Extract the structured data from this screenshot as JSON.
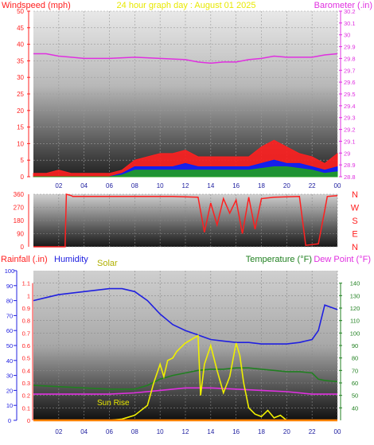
{
  "chart_data": [
    {
      "type": "line",
      "title": "24 hour graph day : August 01 2025",
      "y_left_label": "Windspeed (mph)",
      "y_right_label": "Barometer (.in)",
      "x_ticks": [
        "02",
        "04",
        "06",
        "08",
        "10",
        "12",
        "14",
        "16",
        "18",
        "20",
        "22",
        "00"
      ],
      "x_range": [
        0,
        24
      ],
      "y_left_ticks": [
        0,
        5,
        10,
        15,
        20,
        25,
        30,
        35,
        40,
        45,
        50
      ],
      "y_left_range": [
        0,
        50
      ],
      "y_right_ticks": [
        28.8,
        28.9,
        29,
        29.1,
        29.2,
        29.3,
        29.4,
        29.5,
        29.6,
        29.7,
        29.8,
        29.9,
        30,
        30.1,
        30.2
      ],
      "y_right_range": [
        28.8,
        30.2
      ],
      "series": [
        {
          "key": "barometer",
          "axis": "right",
          "color": "#e030e0",
          "x": [
            0,
            1,
            2,
            3,
            4,
            6,
            8,
            10,
            12,
            13,
            14,
            15,
            16,
            17,
            18,
            19,
            20,
            21,
            22,
            23,
            24
          ],
          "y": [
            29.84,
            29.84,
            29.82,
            29.81,
            29.8,
            29.8,
            29.81,
            29.8,
            29.79,
            29.77,
            29.76,
            29.77,
            29.77,
            29.79,
            29.8,
            29.82,
            29.81,
            29.81,
            29.81,
            29.83,
            29.84
          ]
        },
        {
          "key": "wind_gust",
          "axis": "left",
          "color": "#ff2020",
          "x": [
            0,
            1,
            2,
            3,
            4,
            5,
            6,
            7,
            8,
            9,
            10,
            11,
            12,
            13,
            14,
            15,
            16,
            17,
            18,
            19,
            20,
            21,
            22,
            23,
            24
          ],
          "y": [
            1,
            1,
            2,
            1,
            1,
            1,
            1,
            2,
            5,
            6,
            7,
            7,
            8,
            6,
            6,
            6,
            6,
            6,
            9,
            11,
            9,
            7,
            6,
            4,
            7
          ]
        },
        {
          "key": "wind_avg",
          "axis": "left",
          "color": "#0020ff",
          "x": [
            0,
            1,
            2,
            3,
            4,
            5,
            6,
            7,
            8,
            9,
            10,
            11,
            12,
            13,
            14,
            15,
            16,
            17,
            18,
            19,
            20,
            21,
            22,
            23,
            24
          ],
          "y": [
            0,
            0,
            0,
            0,
            0,
            0,
            0,
            1,
            3,
            3,
            3,
            3,
            4,
            3,
            3,
            3,
            3,
            3,
            4,
            5,
            4,
            4,
            3,
            2,
            3
          ]
        },
        {
          "key": "wind_low",
          "axis": "left",
          "color": "#20a020",
          "x": [
            0,
            1,
            2,
            3,
            4,
            5,
            6,
            7,
            8,
            9,
            10,
            11,
            12,
            13,
            14,
            15,
            16,
            17,
            18,
            19,
            20,
            21,
            22,
            23,
            24
          ],
          "y": [
            0,
            0,
            0,
            0,
            0,
            0,
            0,
            0.5,
            2,
            2,
            2,
            2,
            2,
            2,
            2,
            2,
            2,
            2,
            2.5,
            3,
            3,
            2.5,
            2,
            1,
            1.5
          ]
        }
      ]
    },
    {
      "type": "line",
      "y_right_labels": [
        "N",
        "W",
        "S",
        "E",
        "N"
      ],
      "y_left_ticks": [
        0,
        90,
        180,
        270,
        360
      ],
      "y_range": [
        0,
        360
      ],
      "x_range": [
        0,
        24
      ],
      "series": [
        {
          "key": "wind_direction",
          "color": "#ff2020",
          "x": [
            0,
            2.5,
            2.6,
            3.0,
            3.1,
            8.0,
            11.0,
            13.0,
            13.5,
            14.0,
            14.5,
            15.0,
            15.5,
            16.0,
            16.5,
            17.0,
            17.5,
            18.0,
            19.0,
            21.0,
            21.5,
            22.5,
            23.0,
            23.2,
            24
          ],
          "y": [
            0,
            0,
            360,
            350,
            345,
            345,
            345,
            340,
            100,
            300,
            150,
            330,
            230,
            320,
            90,
            340,
            120,
            330,
            340,
            345,
            10,
            20,
            250,
            345,
            350
          ]
        }
      ]
    },
    {
      "type": "line",
      "y_left_label_1": "Rainfall (.in)",
      "y_left_label_2": "Humidity",
      "solar_label": "Solar",
      "y_right_label_1": "Temperature (°F)",
      "y_right_label_2": "Dew Point (°F)",
      "annotation": "Sun Rise",
      "x_ticks": [
        "02",
        "04",
        "06",
        "08",
        "10",
        "12",
        "14",
        "16",
        "18",
        "20",
        "22",
        "00"
      ],
      "x_range": [
        0,
        24
      ],
      "rain_ticks": [
        0,
        0.1,
        0.2,
        0.3,
        0.4,
        0.5,
        0.6,
        0.7,
        0.8,
        0.9,
        1,
        1.1
      ],
      "rain_range": [
        0,
        1.2
      ],
      "humidity_ticks": [
        0,
        10,
        20,
        30,
        40,
        50,
        60,
        70,
        80,
        90,
        100
      ],
      "humidity_range": [
        0,
        100
      ],
      "temp_ticks": [
        40,
        50,
        60,
        70,
        80,
        90,
        100,
        110,
        120,
        130,
        140
      ],
      "temp_range": [
        30,
        150
      ],
      "series": [
        {
          "key": "humidity",
          "axis": "humidity",
          "color": "#2020e0",
          "x": [
            0,
            1,
            2,
            3,
            4,
            5,
            6,
            7,
            8,
            9,
            10,
            11,
            12,
            13,
            14,
            15,
            16,
            17,
            18,
            19,
            20,
            21,
            22,
            22.5,
            23,
            24
          ],
          "y": [
            80,
            82,
            84,
            85,
            86,
            87,
            88,
            88,
            86,
            80,
            71,
            64,
            60,
            57,
            54,
            53,
            52,
            52,
            51,
            51,
            51,
            52,
            54,
            60,
            77,
            74
          ]
        },
        {
          "key": "temperature",
          "axis": "temp",
          "color": "#208020",
          "x": [
            0,
            2,
            4,
            6,
            8,
            9,
            10,
            11,
            12,
            13,
            14,
            15,
            16,
            17,
            18,
            19,
            20,
            21,
            22,
            22.5,
            23,
            24
          ],
          "y": [
            58,
            57,
            56,
            55,
            55,
            58,
            63,
            66,
            68,
            70,
            71,
            71,
            72,
            72,
            71,
            70,
            69,
            69,
            68,
            63,
            62,
            61
          ]
        },
        {
          "key": "dew_point",
          "axis": "temp",
          "color": "#e030e0",
          "x": [
            0,
            2,
            4,
            6,
            8,
            10,
            12,
            14,
            16,
            18,
            20,
            22,
            23,
            24
          ],
          "y": [
            51,
            51,
            51,
            51,
            52,
            54,
            56,
            56,
            55,
            54,
            53,
            51,
            51,
            51
          ]
        },
        {
          "key": "solar",
          "axis": "rain",
          "color": "#f0f000",
          "x": [
            6.0,
            7.0,
            8.0,
            9.0,
            9.5,
            10.0,
            10.3,
            10.6,
            11.0,
            11.3,
            11.6,
            12.0,
            12.5,
            13.0,
            13.2,
            13.5,
            14.0,
            14.5,
            15.0,
            15.5,
            16.0,
            16.3,
            16.6,
            17.0,
            17.5,
            18.0,
            18.5,
            19.0,
            19.5,
            20.0
          ],
          "y": [
            0,
            0.01,
            0.04,
            0.12,
            0.3,
            0.45,
            0.35,
            0.48,
            0.5,
            0.55,
            0.58,
            0.62,
            0.65,
            0.68,
            0.2,
            0.45,
            0.6,
            0.4,
            0.22,
            0.35,
            0.62,
            0.52,
            0.3,
            0.1,
            0.05,
            0.03,
            0.08,
            0.02,
            0.04,
            0
          ]
        },
        {
          "key": "rainfall",
          "axis": "rain",
          "color": "#ff8000",
          "x": [
            0,
            24
          ],
          "y": [
            0,
            0
          ]
        }
      ]
    }
  ],
  "colors": {
    "title": "#e8e800",
    "wind_label": "#ff2020",
    "baro_label": "#e030e0",
    "rain_label": "#ff2020",
    "humidity_label": "#2020e0",
    "solar_label": "#b0b000",
    "temp_label": "#208020",
    "dew_label": "#e030e0",
    "compass": "#ff2020",
    "sunrise": "#e8e800"
  }
}
